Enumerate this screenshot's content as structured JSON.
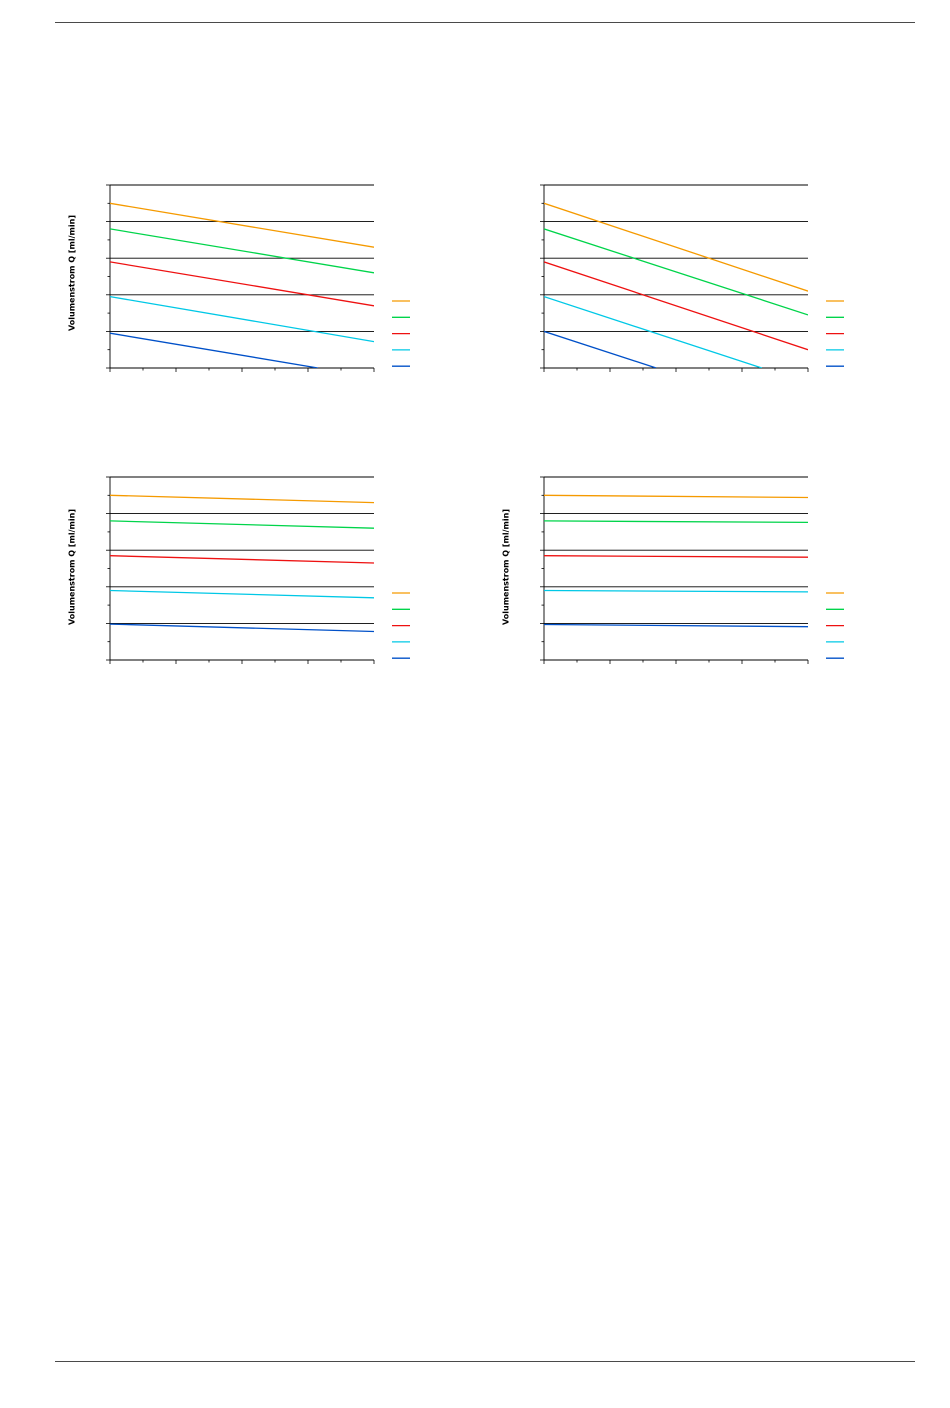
{
  "page": {
    "header_rule": true,
    "footer_rule": true
  },
  "chart_data": [
    {
      "type": "line",
      "ylabel": "Volumenstrom Q [ml/min]",
      "xlim": [
        0,
        8
      ],
      "ylim": [
        0,
        5
      ],
      "grid": {
        "horizontal": true,
        "vertical": false
      },
      "legend_placement": "right",
      "series": [
        {
          "color": "#f59a00",
          "x": [
            0,
            8
          ],
          "y": [
            4.5,
            3.3
          ]
        },
        {
          "color": "#00d44a",
          "x": [
            0,
            8
          ],
          "y": [
            3.8,
            2.6
          ]
        },
        {
          "color": "#ee1111",
          "x": [
            0,
            8
          ],
          "y": [
            2.9,
            1.7
          ]
        },
        {
          "color": "#00c8e6",
          "x": [
            0,
            8
          ],
          "y": [
            1.95,
            0.72
          ]
        },
        {
          "color": "#0050c8",
          "x": [
            0,
            6.3
          ],
          "y": [
            0.95,
            0.0
          ]
        }
      ]
    },
    {
      "type": "line",
      "ylabel": "",
      "xlim": [
        0,
        8
      ],
      "ylim": [
        0,
        5
      ],
      "grid": {
        "horizontal": true,
        "vertical": false
      },
      "legend_placement": "right",
      "series": [
        {
          "color": "#f59a00",
          "x": [
            0,
            8
          ],
          "y": [
            4.5,
            2.1
          ]
        },
        {
          "color": "#00d44a",
          "x": [
            0,
            8
          ],
          "y": [
            3.8,
            1.45
          ]
        },
        {
          "color": "#ee1111",
          "x": [
            0,
            8
          ],
          "y": [
            2.9,
            0.5
          ]
        },
        {
          "color": "#00c8e6",
          "x": [
            0,
            6.6
          ],
          "y": [
            1.95,
            0.0
          ]
        },
        {
          "color": "#0050c8",
          "x": [
            0,
            3.4
          ],
          "y": [
            1.0,
            0.0
          ]
        }
      ]
    },
    {
      "type": "line",
      "ylabel": "Volumenstrom Q [ml/min]",
      "xlim": [
        0,
        8
      ],
      "ylim": [
        0,
        5
      ],
      "grid": {
        "horizontal": true,
        "vertical": false
      },
      "legend_placement": "right",
      "series": [
        {
          "color": "#f59a00",
          "x": [
            0,
            8
          ],
          "y": [
            4.5,
            4.3
          ]
        },
        {
          "color": "#00d44a",
          "x": [
            0,
            8
          ],
          "y": [
            3.8,
            3.6
          ]
        },
        {
          "color": "#ee1111",
          "x": [
            0,
            8
          ],
          "y": [
            2.85,
            2.65
          ]
        },
        {
          "color": "#00c8e6",
          "x": [
            0,
            8
          ],
          "y": [
            1.9,
            1.7
          ]
        },
        {
          "color": "#0050c8",
          "x": [
            0,
            8
          ],
          "y": [
            0.98,
            0.78
          ]
        }
      ]
    },
    {
      "type": "line",
      "ylabel": "Volumenstrom Q [ml/min]",
      "xlim": [
        0,
        8
      ],
      "ylim": [
        0,
        5
      ],
      "grid": {
        "horizontal": true,
        "vertical": false
      },
      "legend_placement": "right",
      "series": [
        {
          "color": "#f59a00",
          "x": [
            0,
            8
          ],
          "y": [
            4.5,
            4.44
          ]
        },
        {
          "color": "#00d44a",
          "x": [
            0,
            8
          ],
          "y": [
            3.8,
            3.76
          ]
        },
        {
          "color": "#ee1111",
          "x": [
            0,
            8
          ],
          "y": [
            2.85,
            2.81
          ]
        },
        {
          "color": "#00c8e6",
          "x": [
            0,
            8
          ],
          "y": [
            1.9,
            1.86
          ]
        },
        {
          "color": "#0050c8",
          "x": [
            0,
            8
          ],
          "y": [
            0.97,
            0.91
          ]
        }
      ]
    }
  ]
}
